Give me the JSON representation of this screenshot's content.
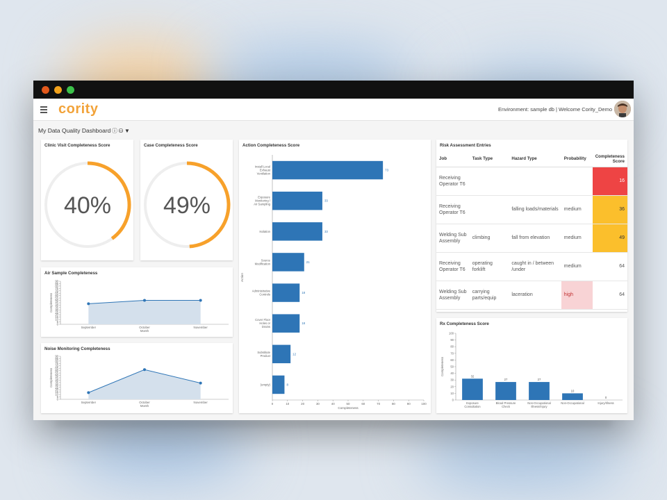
{
  "app": {
    "logo": "cority",
    "environment": "Environment: sample db | Welcome Cority_Demo",
    "dashboard_title": "My Data Quality Dashboard"
  },
  "colors": {
    "accent": "#f7a12b",
    "bar": "#2e75b6",
    "area": "#d4e0ec",
    "red": "#ee4444",
    "yellow": "#fbbf2c",
    "pink": "#f8d3d5"
  },
  "gauges": [
    {
      "title": "Clinic Visit Completeness Score",
      "value": 40,
      "label": "40%"
    },
    {
      "title": "Case Completeness Score",
      "value": 49,
      "label": "49%"
    }
  ],
  "risk": {
    "title": "Risk Assessment Entries",
    "columns": [
      "Job",
      "Task Type",
      "Hazard Type",
      "Probability",
      "Completeness Score"
    ],
    "rows": [
      {
        "job": "Receiving Operator T6",
        "task": "",
        "hazard": "",
        "prob": "",
        "score": "16"
      },
      {
        "job": "Receiving Operator T6",
        "task": "",
        "hazard": "falling loads/materials",
        "prob": "medium",
        "score": "36"
      },
      {
        "job": "Welding Sub Assembly",
        "task": "climbing",
        "hazard": "fall from elevation",
        "prob": "medium",
        "score": "49"
      },
      {
        "job": "Receiving Operator T6",
        "task": "operating forklift",
        "hazard": "caught in / between /under",
        "prob": "medium",
        "score": "64"
      },
      {
        "job": "Welding Sub Assembly",
        "task": "carrying parts/equip",
        "hazard": "laceration",
        "prob": "high",
        "score": "64"
      }
    ]
  },
  "chart_data": [
    {
      "type": "area",
      "title": "Air Sample Completeness",
      "xlabel": "Month",
      "ylabel": "Completeness",
      "categories": [
        "September",
        "October",
        "November"
      ],
      "values": [
        43,
        50,
        50
      ],
      "ylim": [
        0,
        90
      ],
      "yticks": [
        0,
        5,
        10,
        15,
        20,
        25,
        30,
        35,
        40,
        45,
        50,
        55,
        60,
        65,
        70,
        75,
        80,
        85,
        90
      ]
    },
    {
      "type": "area",
      "title": "Noise Monitoring Completeness",
      "xlabel": "Month",
      "ylabel": "Completeness",
      "categories": [
        "September",
        "October",
        "November"
      ],
      "values": [
        14,
        62,
        34
      ],
      "ylim": [
        0,
        90
      ],
      "yticks": [
        0,
        5,
        10,
        15,
        20,
        25,
        30,
        35,
        40,
        45,
        50,
        55,
        60,
        65,
        70,
        75,
        80,
        85,
        90
      ]
    },
    {
      "type": "bar",
      "orientation": "horizontal",
      "title": "Action Completeness Score",
      "xlabel": "Completeness",
      "ylabel": "Action",
      "categories": [
        "Install Local Exhaust Ventilation",
        "Exposure Monitoring / Air Sampling",
        "Isolation",
        "Source Modification",
        "Administrative Controls",
        "Cover Floor Holes or Drains",
        "Substitute Product",
        "(empty)"
      ],
      "values": [
        73,
        33,
        33,
        21,
        18,
        18,
        12,
        8
      ],
      "xlim": [
        0,
        100
      ],
      "xticks": [
        0,
        10,
        20,
        30,
        40,
        50,
        60,
        70,
        80,
        90,
        100
      ]
    },
    {
      "type": "bar",
      "title": "Rx Completeness Score",
      "ylabel": "Completeness",
      "categories": [
        "Exposure Consultation",
        "Blood Pressure Check",
        "Non-Occupational Illness/Injury",
        "Non-Occupational",
        "Injury/Illness"
      ],
      "values": [
        32,
        27,
        27,
        10,
        0
      ],
      "ylim": [
        0,
        100
      ],
      "yticks": [
        0,
        10,
        20,
        30,
        40,
        50,
        60,
        70,
        80,
        90,
        100
      ]
    }
  ]
}
